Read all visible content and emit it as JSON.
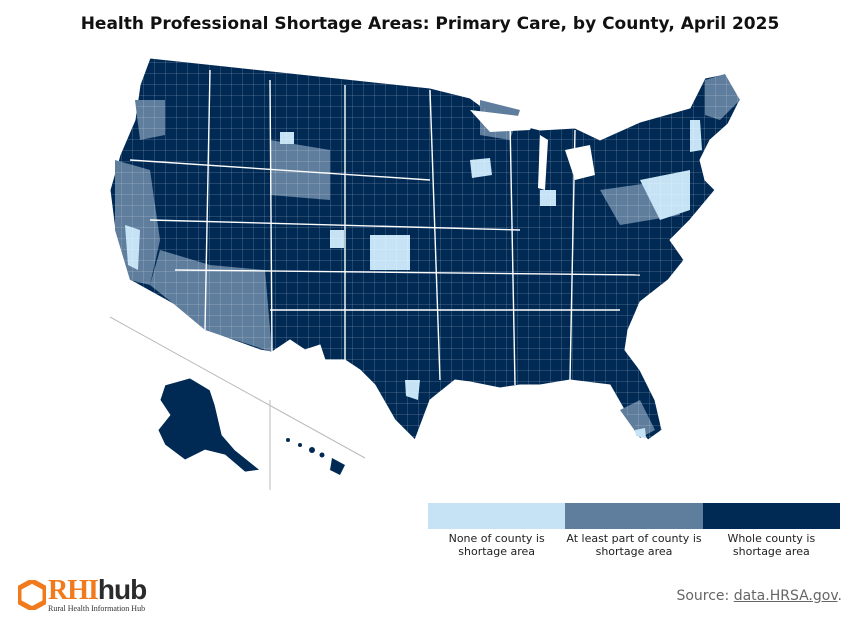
{
  "title": "Health Professional Shortage Areas: Primary Care, by County, April 2025",
  "colors": {
    "none": "#c6e3f5",
    "partial": "#5f7d9c",
    "whole": "#002a54",
    "border": "#ffffff",
    "inset_line": "#bbbbbb"
  },
  "legend": {
    "items": [
      {
        "label": "None of county is shortage area",
        "color": "#c6e3f5"
      },
      {
        "label": "At least part of county is shortage area",
        "color": "#5f7d9c"
      },
      {
        "label": "Whole county is shortage area",
        "color": "#002a54"
      }
    ],
    "label_lines": [
      [
        "None of county is",
        "shortage area"
      ],
      [
        "At least part of county is",
        "shortage area"
      ],
      [
        "Whole county is",
        "shortage area"
      ]
    ]
  },
  "logo": {
    "text_main": "RHI",
    "text_hub": "hub",
    "subtitle": "Rural Health Information Hub"
  },
  "source": {
    "prefix": "Source: ",
    "link": "data.HRSA.gov",
    "suffix": "."
  }
}
